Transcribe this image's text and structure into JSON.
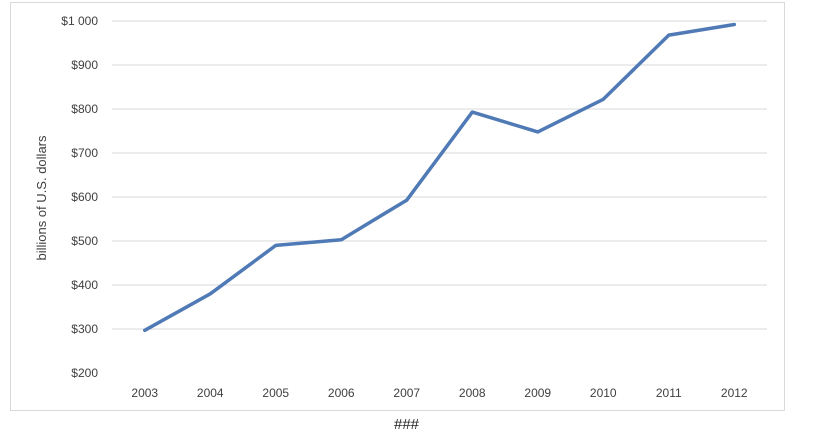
{
  "chart_data": {
    "type": "line",
    "x": [
      "2003",
      "2004",
      "2005",
      "2006",
      "2007",
      "2008",
      "2009",
      "2010",
      "2011",
      "2012"
    ],
    "series": [
      {
        "values": [
          297,
          380,
          490,
          503,
          593,
          793,
          748,
          822,
          968,
          992
        ]
      }
    ],
    "ylabel": "billions of U.S. dollars",
    "ylim": [
      200,
      1000
    ],
    "y_ticks": [
      200,
      300,
      400,
      500,
      600,
      700,
      800,
      900,
      1000
    ],
    "y_tick_labels": [
      "$200",
      "$300",
      "$400",
      "$500",
      "$600",
      "$700",
      "$800",
      "$900",
      "$1 000"
    ],
    "grid": true,
    "line_color": "#4f7ab5",
    "grid_color": "#d9d9d9"
  },
  "caption": "###"
}
